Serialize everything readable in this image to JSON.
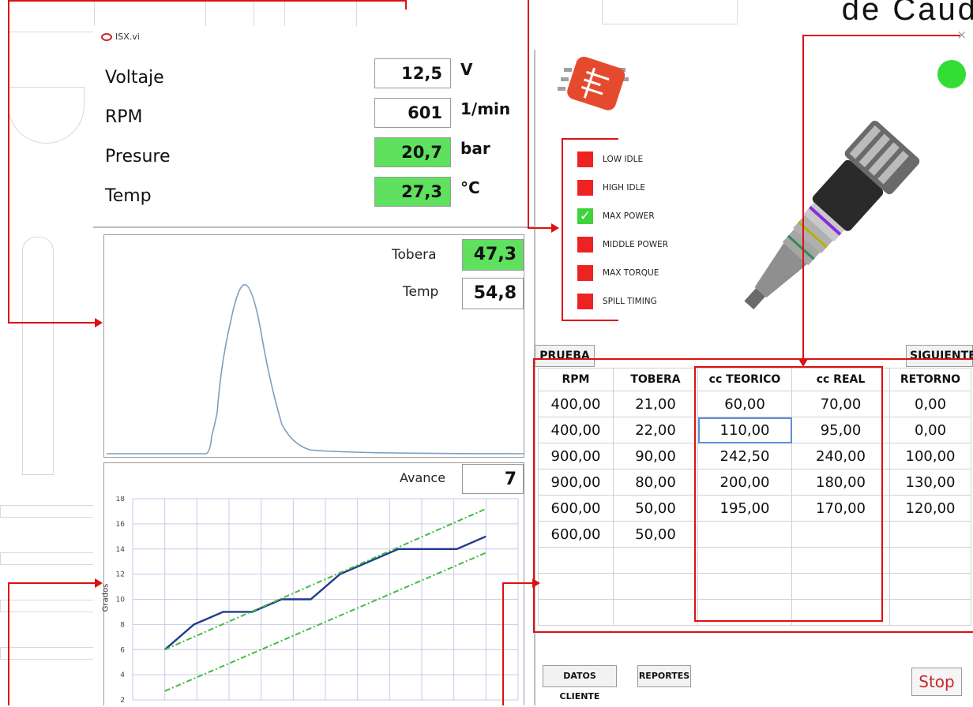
{
  "header_text": "de Caud",
  "window": {
    "title": "ISX.vi",
    "close": "×"
  },
  "readings": [
    {
      "label": "Voltaje",
      "value": "12,5",
      "unit": "V",
      "highlight": false
    },
    {
      "label": "RPM",
      "value": "601",
      "unit": "1/min",
      "highlight": false
    },
    {
      "label": "Presure",
      "value": "20,7",
      "unit": "bar",
      "highlight": true
    },
    {
      "label": "Temp",
      "value": "27,3",
      "unit": "°C",
      "highlight": true
    }
  ],
  "pulse_panel": {
    "tobera_label": "Tobera",
    "tobera_value": "47,3",
    "temp_label": "Temp",
    "temp_value": "54,8"
  },
  "advance_panel": {
    "label": "Avance",
    "value": "7",
    "y_axis_label": "Grados",
    "y_ticks": [
      "18",
      "16",
      "14",
      "12",
      "10",
      "8",
      "6",
      "4",
      "2"
    ]
  },
  "chart_data": {
    "type": "line",
    "ylabel": "Grados",
    "ylim": [
      2,
      18
    ],
    "yticks": [
      2,
      4,
      6,
      8,
      10,
      12,
      14,
      16,
      18
    ],
    "series": [
      {
        "values": [
          6,
          8,
          9,
          9,
          10,
          10,
          12,
          13,
          14,
          14,
          14,
          15
        ],
        "color": "#1f3a8a"
      },
      {
        "values": [
          6,
          17.2
        ],
        "color": "#44bb44",
        "style": "dash-dot"
      },
      {
        "values": [
          2.7,
          13.7
        ],
        "color": "#44bb44",
        "style": "dash-dot"
      }
    ]
  },
  "tests": [
    {
      "label": "LOW IDLE",
      "status": "red"
    },
    {
      "label": "HIGH IDLE",
      "status": "red"
    },
    {
      "label": "MAX POWER",
      "status": "ok"
    },
    {
      "label": "MIDDLE POWER",
      "status": "red"
    },
    {
      "label": "MAX TORQUE",
      "status": "red"
    },
    {
      "label": "SPILL TIMING",
      "status": "red"
    }
  ],
  "check_mark": "✓",
  "indicator_color": "#33dd33",
  "buttons": {
    "prueba": "PRUEBA",
    "siguiente": "SIGUIENTE",
    "datos_cliente": "DATOS CLIENTE",
    "reportes": "REPORTES",
    "stop": "Stop"
  },
  "table": {
    "headers": [
      "RPM",
      "TOBERA",
      "cc TEORICO",
      "cc REAL",
      "RETORNO"
    ],
    "rows": [
      [
        "400,00",
        "21,00",
        "60,00",
        "70,00",
        "0,00"
      ],
      [
        "400,00",
        "22,00",
        "110,00",
        "95,00",
        "0,00"
      ],
      [
        "900,00",
        "90,00",
        "242,50",
        "240,00",
        "100,00"
      ],
      [
        "900,00",
        "80,00",
        "200,00",
        "180,00",
        "130,00"
      ],
      [
        "600,00",
        "50,00",
        "195,00",
        "170,00",
        "120,00"
      ],
      [
        "600,00",
        "50,00",
        "",
        "",
        ""
      ],
      [
        "",
        "",
        "",
        "",
        ""
      ],
      [
        "",
        "",
        "",
        "",
        ""
      ],
      [
        "",
        "",
        "",
        "",
        ""
      ]
    ]
  },
  "icons": {
    "chip": "chip-logo-icon",
    "injector": "injector-image"
  },
  "colors": {
    "accent_red": "#dd1111",
    "green": "#5fe05f",
    "blue_line": "#1f3a8a",
    "dash_green": "#44bb44"
  }
}
